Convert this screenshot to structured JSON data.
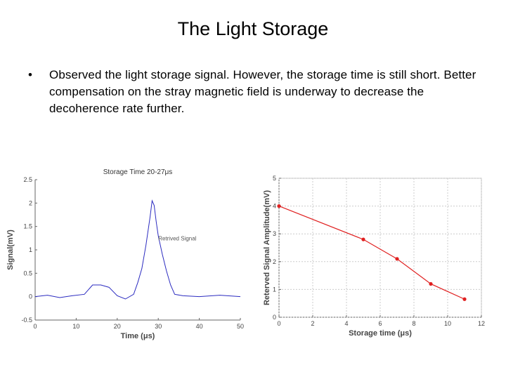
{
  "slide": {
    "title": "The Light Storage",
    "bullet": "Observed the light storage signal. However, the storage time is still short. Better compensation on the stray magnetic field is underway to decrease the decoherence rate further."
  },
  "chart_data": [
    {
      "type": "line",
      "title": "Storage Time 20-27μs",
      "xlabel": "Time (μs)",
      "ylabel": "Signal(mV)",
      "xlim": [
        0,
        50
      ],
      "ylim": [
        -0.5,
        2.5
      ],
      "xticks": [
        "0",
        "10",
        "20",
        "30",
        "40",
        "50"
      ],
      "yticks": [
        "-0.5",
        "0",
        "0.5",
        "1",
        "1.5",
        "2",
        "2.5"
      ],
      "annotation": "Retrived Signal",
      "series": [
        {
          "color": "#2b2bc0",
          "x": [
            0,
            3,
            6,
            9,
            12,
            14,
            16,
            18,
            20,
            22,
            24,
            25,
            26,
            27,
            28,
            28.5,
            29,
            29.5,
            30,
            31,
            32,
            33,
            34,
            36,
            40,
            45,
            50
          ],
          "y": [
            0,
            0.03,
            -0.02,
            0.02,
            0.05,
            0.25,
            0.25,
            0.2,
            0.02,
            -0.05,
            0.05,
            0.3,
            0.6,
            1.1,
            1.7,
            2.05,
            1.95,
            1.6,
            1.3,
            0.9,
            0.55,
            0.25,
            0.05,
            0.02,
            0.0,
            0.03,
            0.0
          ]
        }
      ]
    },
    {
      "type": "line",
      "title": "",
      "xlabel": "Storage time (μs)",
      "ylabel": "Reterved Signal Amplitude(mV)",
      "xlim": [
        0,
        12
      ],
      "ylim": [
        0,
        5
      ],
      "xticks": [
        "0",
        "2",
        "4",
        "6",
        "8",
        "10",
        "12"
      ],
      "yticks": [
        "0",
        "1",
        "2",
        "3",
        "4",
        "5"
      ],
      "grid": true,
      "series": [
        {
          "color": "#e02020",
          "x": [
            0,
            5,
            7,
            9,
            11
          ],
          "y": [
            4.0,
            2.8,
            2.1,
            1.2,
            0.65
          ]
        }
      ]
    }
  ]
}
